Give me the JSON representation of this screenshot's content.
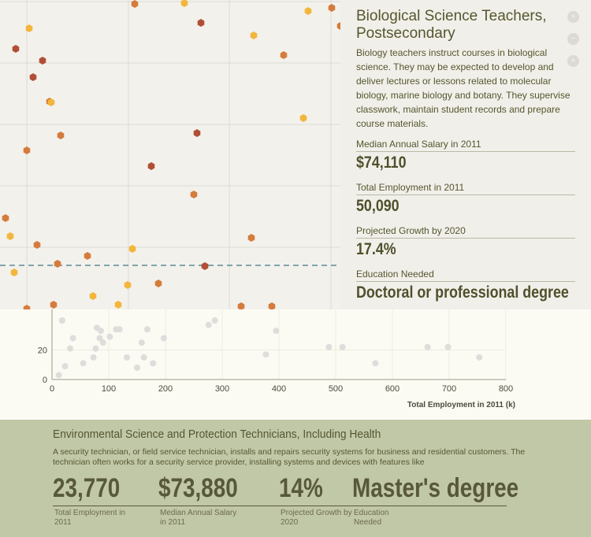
{
  "chart_data": [
    {
      "type": "scatter",
      "xlabel": "Total Employment in 2011 (k)",
      "ylabel": "",
      "xlim": [
        0,
        800
      ],
      "ylim": [
        0,
        40
      ],
      "x_ticks": [
        "0",
        "100",
        "200",
        "300",
        "400",
        "500",
        "600",
        "700",
        "800"
      ],
      "y_ticks": [
        "0",
        "20"
      ],
      "points": [
        [
          12,
          3
        ],
        [
          18,
          40
        ],
        [
          23,
          9
        ],
        [
          32,
          21
        ],
        [
          37,
          28
        ],
        [
          55,
          11
        ],
        [
          73,
          15
        ],
        [
          77,
          21
        ],
        [
          79,
          35
        ],
        [
          84,
          28
        ],
        [
          86,
          33
        ],
        [
          90,
          25
        ],
        [
          102,
          29
        ],
        [
          113,
          34
        ],
        [
          119,
          34
        ],
        [
          132,
          15
        ],
        [
          150,
          8
        ],
        [
          158,
          25
        ],
        [
          162,
          15
        ],
        [
          168,
          34
        ],
        [
          178,
          11
        ],
        [
          197,
          28
        ],
        [
          276,
          37
        ],
        [
          287,
          40
        ],
        [
          377,
          17
        ],
        [
          395,
          33
        ],
        [
          488,
          22
        ],
        [
          512,
          22
        ],
        [
          570,
          11
        ],
        [
          662,
          22
        ],
        [
          698,
          22
        ],
        [
          753,
          15
        ]
      ]
    }
  ],
  "upper_scatter": {
    "colors": {
      "yellow": "#f3b63c",
      "orange": "#d57c3c",
      "red": "#b04f36"
    },
    "points": [
      [
        "orange",
        171,
        5
      ],
      [
        "yellow",
        234,
        4
      ],
      [
        "red",
        255,
        29
      ],
      [
        "yellow",
        391,
        14
      ],
      [
        "orange",
        421,
        10
      ],
      [
        "orange",
        432,
        33
      ],
      [
        "yellow",
        37,
        36
      ],
      [
        "yellow",
        322,
        45
      ],
      [
        "red",
        20,
        62
      ],
      [
        "red",
        54,
        77
      ],
      [
        "red",
        42,
        98
      ],
      [
        "orange",
        360,
        70
      ],
      [
        "orange",
        63,
        129
      ],
      [
        "yellow",
        65,
        130
      ],
      [
        "yellow",
        385,
        150
      ],
      [
        "orange",
        34,
        191
      ],
      [
        "orange",
        77,
        172
      ],
      [
        "red",
        250,
        169
      ],
      [
        "red",
        192,
        211
      ],
      [
        "orange",
        246,
        247
      ],
      [
        "orange",
        7,
        277
      ],
      [
        "yellow",
        13,
        300
      ],
      [
        "orange",
        47,
        311
      ],
      [
        "orange",
        319,
        302
      ],
      [
        "yellow",
        168,
        316
      ],
      [
        "orange",
        73,
        335
      ],
      [
        "orange",
        111,
        325
      ],
      [
        "yellow",
        18,
        346
      ],
      [
        "red",
        260,
        338
      ],
      [
        "yellow",
        162,
        362
      ],
      [
        "orange",
        201,
        360
      ],
      [
        "yellow",
        118,
        376
      ],
      [
        "yellow",
        150,
        387
      ],
      [
        "orange",
        68,
        387
      ],
      [
        "orange",
        34,
        392
      ],
      [
        "orange",
        306,
        389
      ],
      [
        "orange",
        345,
        389
      ],
      [
        "orange",
        598,
        310
      ]
    ]
  },
  "selected": {
    "title": "Biological Science Teachers, Postsecondary",
    "description": "Biology teachers instruct courses in biological science. They may be expected to develop and deliver lectures or lessons related to molecular biology, marine biology and botany. They supervise classwork, maintain student records and prepare course materials.",
    "salary_label": "Median Annual Salary in 2011",
    "salary_value": "$74,110",
    "employment_label": "Total Employment in 2011",
    "employment_value": "50,090",
    "growth_label": "Projected Growth by 2020",
    "growth_value": "17.4%",
    "education_label": "Education Needed",
    "education_value": "Doctoral or professional degree"
  },
  "featured": {
    "title": "Environmental Science and Protection Technicians, Including Health",
    "description": "A security technician, or field service technician, installs and repairs security systems for business and residential customers. The technician often works for a security service provider, installing systems and devices with features like",
    "employment_value": "23,770",
    "employment_label": "Total Employment in 2011",
    "salary_value": "$73,880",
    "salary_label": "Median Annual Salary in 2011",
    "growth_value": "14%",
    "growth_label": "Projected Growth by 2020",
    "education_value": "Master's degree",
    "education_label": "Education Needed"
  },
  "nav_icons": [
    "close-icon",
    "minus-icon",
    "plus-icon"
  ]
}
